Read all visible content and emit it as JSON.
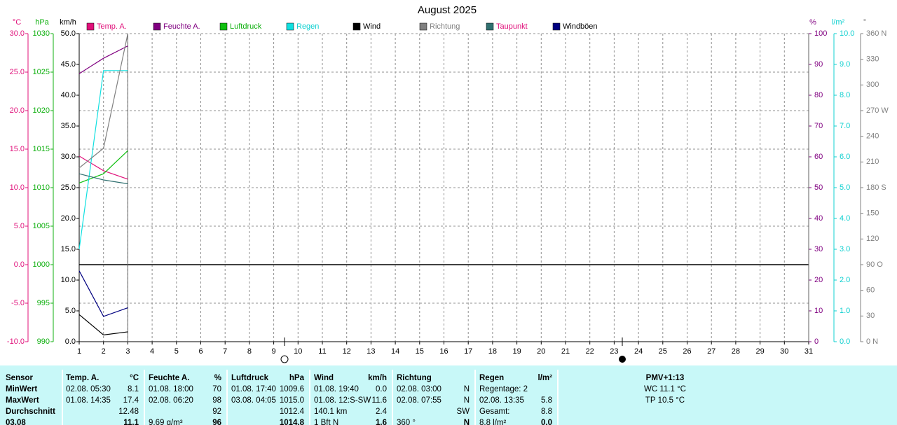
{
  "chart_data": {
    "type": "line",
    "title": "August 2025",
    "x": [
      1,
      2,
      3
    ],
    "xlim": [
      1,
      31
    ],
    "xticks": [
      1,
      2,
      3,
      4,
      5,
      6,
      7,
      8,
      9,
      10,
      11,
      12,
      13,
      14,
      15,
      16,
      17,
      18,
      19,
      20,
      21,
      22,
      23,
      24,
      25,
      26,
      27,
      28,
      29,
      30,
      31
    ],
    "grid": true,
    "axes": [
      {
        "unit": "°C",
        "side": "left",
        "color": "#e0107a",
        "lim": [
          -10,
          30
        ],
        "ticks": [
          {
            "value": 30,
            "label": "30.0"
          },
          {
            "value": 25,
            "label": "25.0"
          },
          {
            "value": 20,
            "label": "20.0"
          },
          {
            "value": 15,
            "label": "15.0"
          },
          {
            "value": 10,
            "label": "10.0"
          },
          {
            "value": 5,
            "label": "5.0"
          },
          {
            "value": 0,
            "label": "0.0"
          },
          {
            "value": -5,
            "label": "-5.0"
          },
          {
            "value": -10,
            "label": "-10.0"
          }
        ]
      },
      {
        "unit": "hPa",
        "side": "left",
        "color": "#10b010",
        "lim": [
          990,
          1030
        ],
        "ticks": [
          1030,
          1025,
          1020,
          1015,
          1010,
          1005,
          1000,
          995,
          990
        ]
      },
      {
        "unit": "km/h",
        "side": "left",
        "color": "#000000",
        "lim": [
          0,
          50
        ],
        "ticks": [
          {
            "value": 50,
            "label": "50.0"
          },
          {
            "value": 45,
            "label": "45.0"
          },
          {
            "value": 40,
            "label": "40.0"
          },
          {
            "value": 35,
            "label": "35.0"
          },
          {
            "value": 30,
            "label": "30.0"
          },
          {
            "value": 25,
            "label": "25.0"
          },
          {
            "value": 20,
            "label": "20.0"
          },
          {
            "value": 15,
            "label": "15.0"
          },
          {
            "value": 10,
            "label": "10.0"
          },
          {
            "value": 5,
            "label": "5.0"
          },
          {
            "value": 0,
            "label": "0.0"
          }
        ]
      },
      {
        "unit": "%",
        "side": "right",
        "color": "#800080",
        "lim": [
          0,
          100
        ],
        "ticks": [
          100,
          90,
          80,
          70,
          60,
          50,
          40,
          30,
          20,
          10,
          0
        ]
      },
      {
        "unit": "l/m²",
        "side": "right",
        "color": "#10d0d0",
        "lim": [
          0,
          10
        ],
        "ticks": [
          {
            "value": 10,
            "label": "10.0"
          },
          {
            "value": 9,
            "label": "9.0"
          },
          {
            "value": 8,
            "label": "8.0"
          },
          {
            "value": 7,
            "label": "7.0"
          },
          {
            "value": 6,
            "label": "6.0"
          },
          {
            "value": 5,
            "label": "5.0"
          },
          {
            "value": 4,
            "label": "4.0"
          },
          {
            "value": 3,
            "label": "3.0"
          },
          {
            "value": 2,
            "label": "2.0"
          },
          {
            "value": 1,
            "label": "1.0"
          },
          {
            "value": 0,
            "label": "0.0"
          }
        ]
      },
      {
        "unit": "°",
        "side": "right",
        "color": "#808080",
        "lim": [
          0,
          360
        ],
        "ticks": [
          {
            "value": 360,
            "label": "360 N"
          },
          330,
          300,
          {
            "value": 270,
            "label": "270 W"
          },
          240,
          210,
          {
            "value": 180,
            "label": "180 S"
          },
          150,
          120,
          {
            "value": 90,
            "label": "90 O"
          },
          60,
          30,
          {
            "value": 0,
            "label": "0 N"
          }
        ]
      }
    ],
    "series": [
      {
        "name": "Temp. A.",
        "color": "#e0107a",
        "label_color": "#e0107a",
        "axis": 0,
        "values": [
          14.1,
          12.2,
          11.1
        ]
      },
      {
        "name": "Feuchte A.",
        "color": "#800080",
        "label_color": "#800080",
        "axis": 3,
        "values": [
          87,
          92,
          96
        ]
      },
      {
        "name": "Luftdruck",
        "color": "#10c010",
        "label_color": "#10b010",
        "axis": 1,
        "values": [
          1010.6,
          1011.8,
          1014.8
        ]
      },
      {
        "name": "Regen",
        "color": "#10e0e0",
        "label_color": "#10d0d0",
        "axis": 4,
        "values": [
          3.0,
          8.8,
          8.8
        ]
      },
      {
        "name": "Wind",
        "color": "#000000",
        "label_color": "#000000",
        "axis": 2,
        "values": [
          4.4,
          1.1,
          1.6
        ]
      },
      {
        "name": "Richtung",
        "color": "#808080",
        "label_color": "#808080",
        "axis": 5,
        "values": [
          203,
          226,
          360
        ]
      },
      {
        "name": "Taupunkt",
        "color": "#307070",
        "label_color": "#e0107a",
        "axis": 0,
        "values": [
          11.8,
          11.0,
          10.5
        ]
      },
      {
        "name": "Windböen",
        "color": "#000080",
        "label_color": "#000000",
        "axis": 2,
        "values": [
          11.5,
          4.1,
          5.5
        ]
      }
    ]
  },
  "table": {
    "header": {
      "label": "Sensor",
      "temp_when": "Temp. A.",
      "temp": "°C",
      "hum_when": "Feuchte A.",
      "hum": "%",
      "pres_when": "Luftdruck",
      "pres": "hPa",
      "wind_when": "Wind",
      "wind": "km/h",
      "dir_when": "Richtung",
      "rain_when": "Regen",
      "rain": "l/m²",
      "pmv": "PMV+1:13"
    },
    "rows": [
      {
        "label": "MinWert",
        "temp_when": "02.08. 05:30",
        "temp": "8.1",
        "hum_when": "01.08. 18:00",
        "hum": "70",
        "pres_when": "01.08. 17:40",
        "pres": "1009.6",
        "wind_when": "01.08. 19:40",
        "wind": "0.0",
        "dir_when": "02.08. 03:00",
        "dir": "N",
        "rain_when": "Regentage: 2",
        "pmv": "WC 11.1 °C"
      },
      {
        "label": "MaxWert",
        "temp_when": "01.08. 14:35",
        "temp": "17.4",
        "hum_when": "02.08. 06:20",
        "hum": "98",
        "pres_when": "03.08. 04:05",
        "pres": "1015.0",
        "wind_when": "01.08. 12:S-SW",
        "wind": "11.6",
        "dir_when": "02.08. 07:55",
        "dir": "N",
        "rain_when": "02.08. 13:35",
        "rain": "5.8",
        "pmv": "TP 10.5 °C"
      },
      {
        "label": "Durchschnitt",
        "temp": "12.48",
        "hum": "92",
        "pres": "1012.4",
        "wind_when": "140.1 km",
        "wind": "2.4",
        "dir": "SW",
        "rain_when": "Gesamt:",
        "rain": "8.8"
      },
      {
        "label": "03.08",
        "temp": "11.1",
        "hum_when": "9.69 g/m³",
        "hum": "96",
        "pres": "1014.8",
        "wind_when": "1 Bft N",
        "wind": "1.6",
        "dir_when": "360 °",
        "dir": "N",
        "rain_when": "8.8 l/m²",
        "rain": "0.0"
      }
    ]
  }
}
